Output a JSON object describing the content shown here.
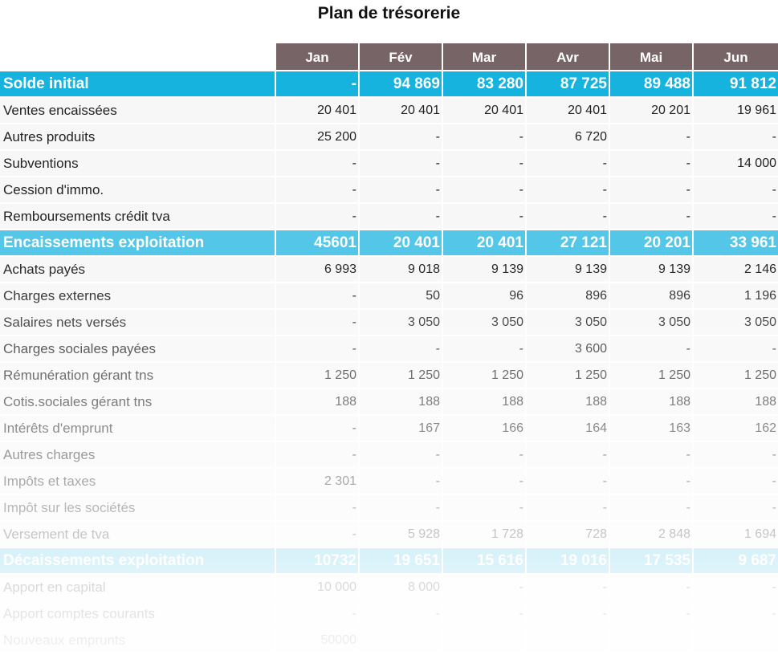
{
  "title": "Plan de trésorerie",
  "months": [
    "Jan",
    "Fév",
    "Mar",
    "Avr",
    "Mai",
    "Jun"
  ],
  "rows": [
    {
      "label": "Solde initial",
      "style": "tot",
      "values": [
        "-",
        "94 869",
        "83 280",
        "87 725",
        "89 488",
        "91 812"
      ]
    },
    {
      "label": "Ventes encaissées",
      "style": "norm",
      "values": [
        "20 401",
        "20 401",
        "20 401",
        "20 401",
        "20 201",
        "19 961"
      ]
    },
    {
      "label": "Autres produits",
      "style": "norm",
      "values": [
        "25 200",
        "-",
        "-",
        "6 720",
        "-",
        "-"
      ]
    },
    {
      "label": "Subventions",
      "style": "norm",
      "values": [
        "-",
        "-",
        "-",
        "-",
        "-",
        "14 000"
      ]
    },
    {
      "label": "Cession d'immo.",
      "style": "norm",
      "values": [
        "-",
        "-",
        "-",
        "-",
        "-",
        "-"
      ]
    },
    {
      "label": "Remboursements crédit tva",
      "style": "norm",
      "values": [
        "-",
        "-",
        "-",
        "-",
        "-",
        "-"
      ]
    },
    {
      "label": "Encaissements exploitation",
      "style": "tot2",
      "values": [
        "45601",
        "20 401",
        "20 401",
        "27 121",
        "20 201",
        "33 961"
      ]
    },
    {
      "label": "Achats payés",
      "style": "norm",
      "values": [
        "6 993",
        "9 018",
        "9 139",
        "9 139",
        "9 139",
        "2 146"
      ]
    },
    {
      "label": "Charges externes",
      "style": "norm",
      "values": [
        "-",
        "50",
        "96",
        "896",
        "896",
        "1 196"
      ]
    },
    {
      "label": "Salaires nets versés",
      "style": "norm",
      "values": [
        "-",
        "3 050",
        "3 050",
        "3 050",
        "3 050",
        "3 050"
      ]
    },
    {
      "label": "Charges sociales payées",
      "style": "norm",
      "values": [
        "-",
        "-",
        "-",
        "3 600",
        "-",
        "-"
      ]
    },
    {
      "label": "Rémunération gérant tns",
      "style": "norm",
      "values": [
        "1 250",
        "1 250",
        "1 250",
        "1 250",
        "1 250",
        "1 250"
      ]
    },
    {
      "label": "Cotis.sociales gérant tns",
      "style": "norm",
      "values": [
        "188",
        "188",
        "188",
        "188",
        "188",
        "188"
      ]
    },
    {
      "label": "Intérêts d'emprunt",
      "style": "norm",
      "values": [
        "-",
        "167",
        "166",
        "164",
        "163",
        "162"
      ]
    },
    {
      "label": "Autres charges",
      "style": "norm",
      "values": [
        "-",
        "-",
        "-",
        "-",
        "-",
        "-"
      ]
    },
    {
      "label": "Impôts et taxes",
      "style": "norm",
      "values": [
        "2 301",
        "-",
        "-",
        "-",
        "-",
        "-"
      ]
    },
    {
      "label": "Impôt sur les sociétés",
      "style": "norm",
      "values": [
        "-",
        "-",
        "-",
        "-",
        "-",
        "-"
      ]
    },
    {
      "label": "Versement de tva",
      "style": "norm",
      "values": [
        "-",
        "5 928",
        "1 728",
        "728",
        "2 848",
        "1 694"
      ]
    },
    {
      "label": "Décaissements exploitation",
      "style": "tot2",
      "values": [
        "10732",
        "19 651",
        "15 616",
        "19 016",
        "17 535",
        "9 687"
      ]
    },
    {
      "label": "Apport en capital",
      "style": "norm",
      "values": [
        "10 000",
        "8 000",
        "-",
        "-",
        "-",
        "-"
      ]
    },
    {
      "label": "Apport comptes courants",
      "style": "norm",
      "values": [
        "-",
        "-",
        "-",
        "-",
        "-",
        "-"
      ]
    },
    {
      "label": "Nouveaux emprunts",
      "style": "norm",
      "values": [
        "50000",
        "",
        "",
        "",
        "",
        ""
      ]
    }
  ]
}
